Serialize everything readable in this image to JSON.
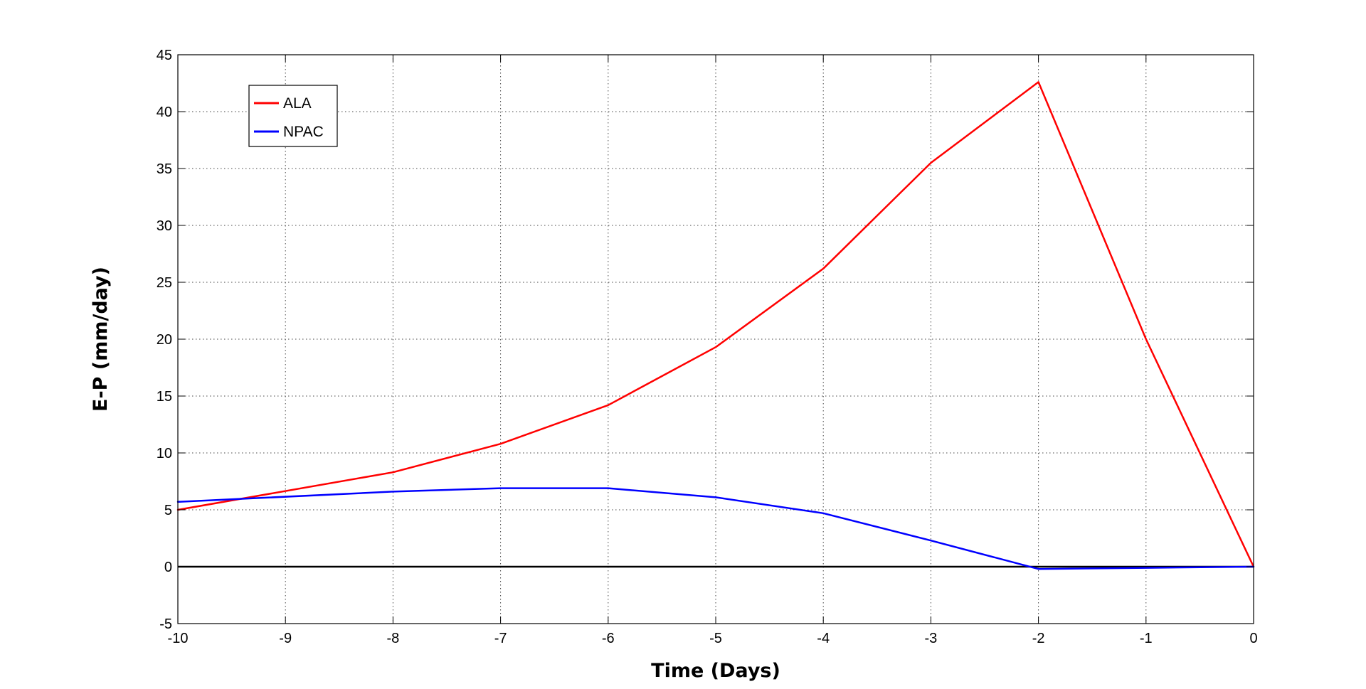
{
  "chart_data": {
    "type": "line",
    "title": "",
    "xlabel": "Time (Days)",
    "ylabel": "E-P (mm/day)",
    "xlim": [
      -10,
      0
    ],
    "ylim": [
      -5,
      45
    ],
    "x_ticks": [
      "-10",
      "-9",
      "-8",
      "-7",
      "-6",
      "-5",
      "-4",
      "-3",
      "-2",
      "-1",
      "0"
    ],
    "y_ticks": [
      "-5",
      "0",
      "5",
      "10",
      "15",
      "20",
      "25",
      "30",
      "35",
      "40",
      "45"
    ],
    "grid": true,
    "legend_position": "top-left",
    "x": [
      -10,
      -8,
      -7,
      -6,
      -5,
      -4,
      -3,
      -2,
      -1,
      0
    ],
    "series": [
      {
        "name": "ALA",
        "color": "#ff0000",
        "values": [
          5.0,
          8.3,
          10.8,
          14.2,
          19.3,
          26.2,
          35.5,
          42.6,
          20.0,
          0.0
        ]
      },
      {
        "name": "NPAC",
        "color": "#0000ff",
        "values": [
          5.7,
          6.6,
          6.9,
          6.9,
          6.1,
          4.7,
          2.3,
          -0.2,
          -0.1,
          0.0
        ]
      }
    ],
    "reference_line": {
      "y": 0,
      "color": "#000000"
    }
  }
}
